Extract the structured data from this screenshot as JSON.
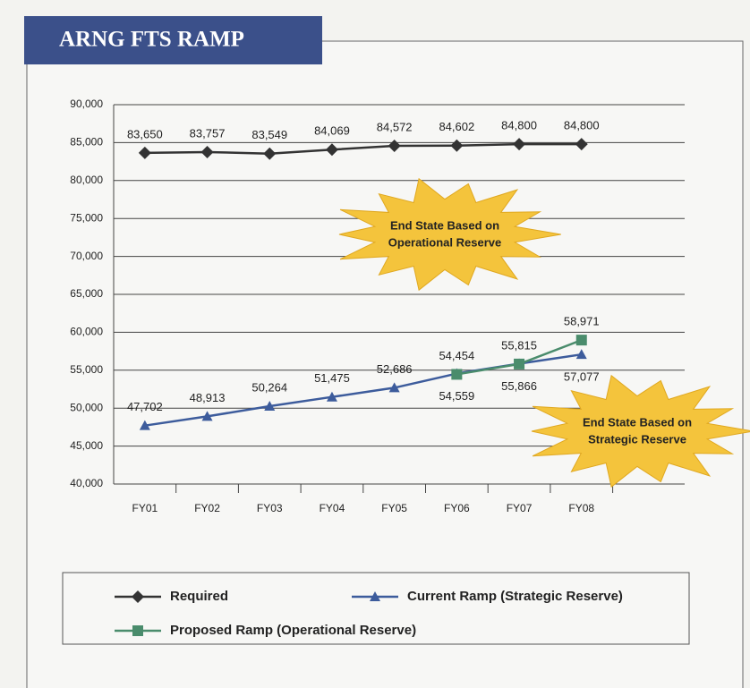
{
  "chart_data": {
    "type": "line",
    "title": "ARNG FTS RAMP",
    "categories": [
      "FY01",
      "FY02",
      "FY03",
      "FY04",
      "FY05",
      "FY06",
      "FY07",
      "FY08"
    ],
    "series": [
      {
        "name": "Required",
        "color": "#333333",
        "marker": "diamond",
        "values": [
          83650,
          83757,
          83549,
          84069,
          84572,
          84602,
          84800,
          84800
        ],
        "value_labels": [
          "83,650",
          "83,757",
          "83,549",
          "84,069",
          "84,572",
          "84,602",
          "84,800",
          "84,800"
        ]
      },
      {
        "name": "Current Ramp (Strategic Reserve)",
        "color": "#3d5c9c",
        "marker": "triangle",
        "values": [
          47702,
          48913,
          50264,
          51475,
          52686,
          54559,
          55866,
          57077
        ],
        "value_labels": [
          "47,702",
          "48,913",
          "50,264",
          "51,475",
          "52,686",
          "54,559",
          "55,866",
          "57,077"
        ]
      },
      {
        "name": "Proposed Ramp (Operational Reserve)",
        "color": "#4a8c6c",
        "marker": "square",
        "values": [
          null,
          null,
          null,
          null,
          null,
          54454,
          55815,
          58971
        ],
        "value_labels": [
          null,
          null,
          null,
          null,
          null,
          "54,454",
          "55,815",
          "58,971"
        ]
      }
    ],
    "ylim": [
      40000,
      90000
    ],
    "yticks": [
      {
        "value": 40000,
        "label": "40,000"
      },
      {
        "value": 45000,
        "label": "45,000"
      },
      {
        "value": 50000,
        "label": "50,000"
      },
      {
        "value": 55000,
        "label": "55,000"
      },
      {
        "value": 60000,
        "label": "60,000"
      },
      {
        "value": 65000,
        "label": "65,000"
      },
      {
        "value": 70000,
        "label": "70,000"
      },
      {
        "value": 75000,
        "label": "75,000"
      },
      {
        "value": 80000,
        "label": "80,000"
      },
      {
        "value": 85000,
        "label": "85,000"
      },
      {
        "value": 90000,
        "label": "90,000"
      }
    ],
    "grid": true,
    "legend": "bottom",
    "annotations": [
      {
        "lines": [
          "End State Based on",
          "Operational Reserve"
        ]
      },
      {
        "lines": [
          "End State Based on",
          "Strategic Reserve"
        ]
      }
    ]
  }
}
